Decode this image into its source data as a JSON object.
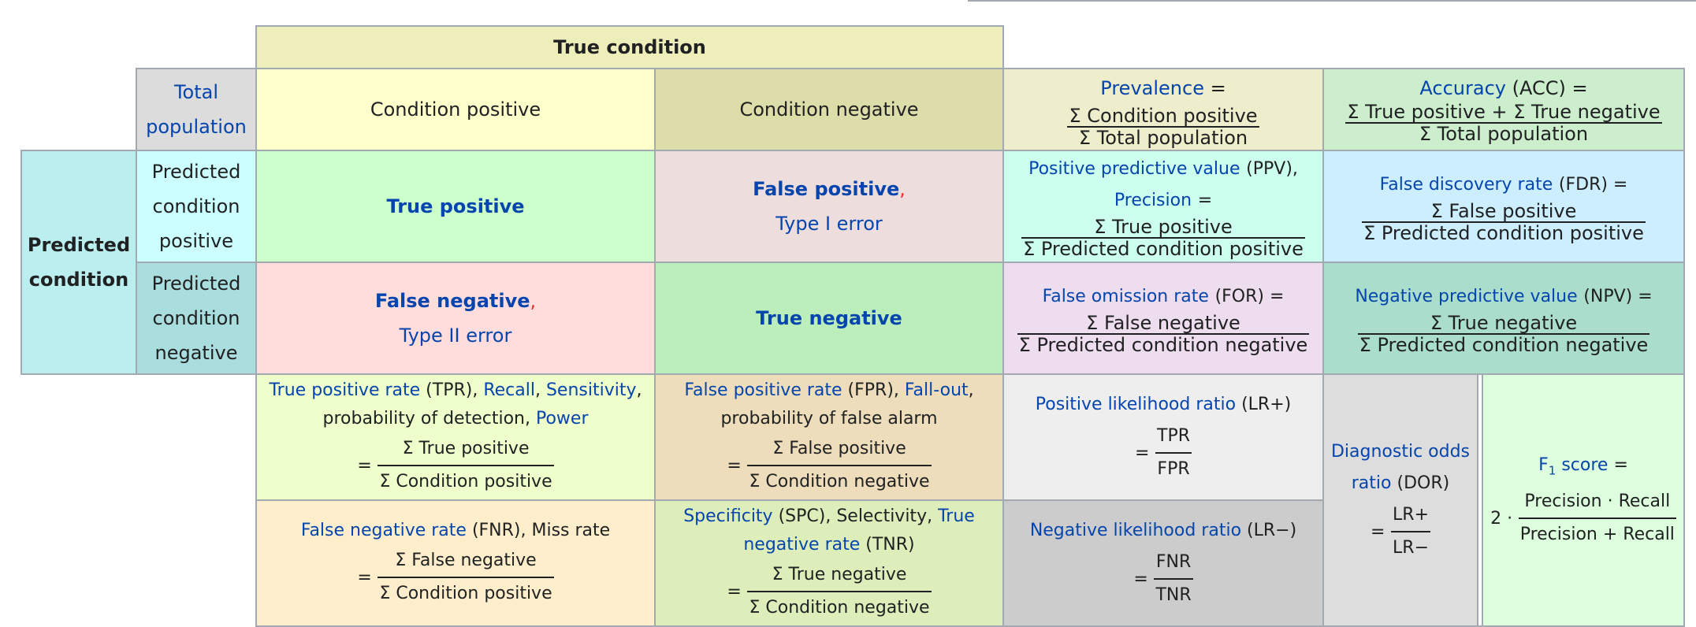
{
  "header": {
    "true_condition": "True condition"
  },
  "total_population": "Total population",
  "condition_positive": "Condition positive",
  "condition_negative": "Condition negative",
  "prevalence": {
    "label": "Prevalence",
    "num": "Σ Condition positive",
    "den": "Σ Total population"
  },
  "accuracy": {
    "label": "Accuracy",
    "abbr": "(ACC) =",
    "num": "Σ True positive + Σ True negative",
    "den": "Σ Total population"
  },
  "predicted_condition": "Predicted condition",
  "predicted_condition_positive": "Predicted condition positive",
  "predicted_condition_negative": "Predicted condition negative",
  "true_positive": "True positive",
  "false_positive": {
    "label": "False positive",
    "comma": ",",
    "sub": "Type I error"
  },
  "false_negative": {
    "label": "False negative",
    "comma": ",",
    "sub": "Type II error"
  },
  "true_negative": "True negative",
  "ppv": {
    "label": "Positive predictive value",
    "abbr": "(PPV),",
    "label2": "Precision",
    "eq": "=",
    "num": "Σ True positive",
    "den": "Σ Predicted condition positive"
  },
  "fdr": {
    "label": "False discovery rate",
    "abbr": "(FDR) =",
    "num": "Σ False positive",
    "den": "Σ Predicted condition positive"
  },
  "for": {
    "label": "False omission rate",
    "abbr": "(FOR) =",
    "num": "Σ False negative",
    "den": "Σ Predicted condition negative"
  },
  "npv": {
    "label": "Negative predictive value",
    "abbr": "(NPV) =",
    "num": "Σ True negative",
    "den": "Σ Predicted condition negative"
  },
  "tpr": {
    "label": "True positive rate",
    "abbr": "(TPR),",
    "recall": "Recall",
    "sensitivity": "Sensitivity",
    "prob": "probability of detection,",
    "power": "Power",
    "num": "Σ True positive",
    "den": "Σ Condition positive"
  },
  "fpr": {
    "label": "False positive rate",
    "abbr": "(FPR),",
    "fallout": "Fall-out",
    "prob": "probability of false alarm",
    "num": "Σ False positive",
    "den": "Σ Condition negative"
  },
  "lrp": {
    "label": "Positive likelihood ratio",
    "abbr": "(LR+)",
    "num": "TPR",
    "den": "FPR"
  },
  "dor": {
    "label": "Diagnostic odds ratio",
    "abbr": "(DOR)",
    "num": "LR+",
    "den": "LR−"
  },
  "f1": {
    "label": "F",
    "sub": "1",
    "label2": "score",
    "eq": "=",
    "prefix": "2 ·",
    "num": "Precision · Recall",
    "den": "Precision + Recall"
  },
  "fnr": {
    "label": "False negative rate",
    "abbr": "(FNR), Miss rate",
    "num": "Σ False negative",
    "den": "Σ Condition positive"
  },
  "tnr": {
    "label": "Specificity",
    "abbr": "(SPC), Selectivity,",
    "label2": "True negative rate",
    "abbr2": "(TNR)",
    "num": "Σ True negative",
    "den": "Σ Condition negative"
  },
  "lrn": {
    "label": "Negative likelihood ratio",
    "abbr": "(LR−)",
    "num": "FNR",
    "den": "TNR"
  },
  "eq": "="
}
